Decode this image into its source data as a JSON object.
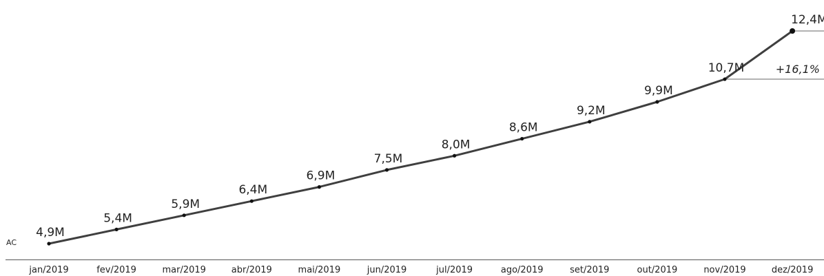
{
  "chart_data": {
    "type": "line",
    "title": "",
    "xlabel": "",
    "ylabel": "",
    "categories": [
      "jan/2019",
      "fev/2019",
      "mar/2019",
      "abr/2019",
      "mai/2019",
      "jun/2019",
      "jul/2019",
      "ago/2019",
      "set/2019",
      "out/2019",
      "nov/2019",
      "dez/2019"
    ],
    "series": [
      {
        "name": "AC",
        "values": [
          4.9,
          5.4,
          5.9,
          6.4,
          6.9,
          7.5,
          8.0,
          8.6,
          9.2,
          9.9,
          10.7,
          12.4
        ],
        "labels": [
          "4,9M",
          "5,4M",
          "5,9M",
          "6,4M",
          "6,9M",
          "7,5M",
          "8,0M",
          "8,6M",
          "9,2M",
          "9,9M",
          "10,7M",
          "12,4M"
        ]
      }
    ],
    "ylim": [
      4.9,
      12.4
    ],
    "grid": false,
    "legend": "none",
    "annotation": {
      "text": "+16,1%",
      "from_category": "nov/2019",
      "to_category": "dez/2019"
    },
    "colors": {
      "line": "#3f3f3f",
      "marker": "#111111",
      "text": "#222222",
      "axis": "#555555"
    }
  }
}
